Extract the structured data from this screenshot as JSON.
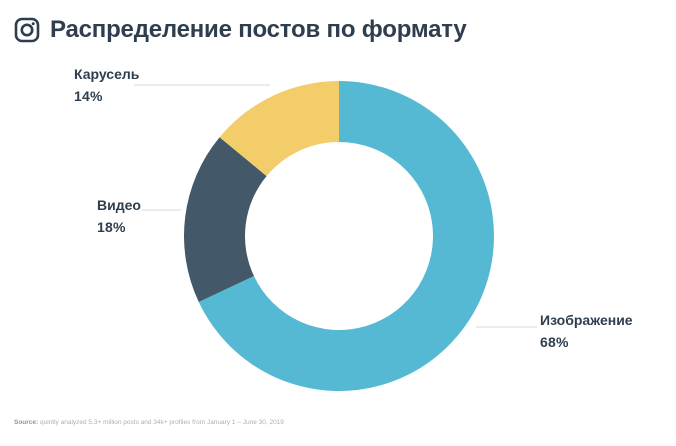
{
  "header": {
    "icon": "instagram-icon",
    "title": "Распределение постов по формату"
  },
  "chart_data": {
    "type": "pie",
    "donut": true,
    "title": "Распределение постов по формату",
    "start_angle_deg": 0,
    "direction": "clockwise",
    "slices": [
      {
        "label": "Изображение",
        "value": 68,
        "value_label": "68%",
        "color": "#56b9d3"
      },
      {
        "label": "Видео",
        "value": 18,
        "value_label": "18%",
        "color": "#435868"
      },
      {
        "label": "Карусель",
        "value": 14,
        "value_label": "14%",
        "color": "#f2cd69"
      }
    ]
  },
  "source": {
    "key": "Source:",
    "text": "quintly analyzed 5.3+ million posts and 34k+ profiles from January 1 – June 30, 2019"
  }
}
